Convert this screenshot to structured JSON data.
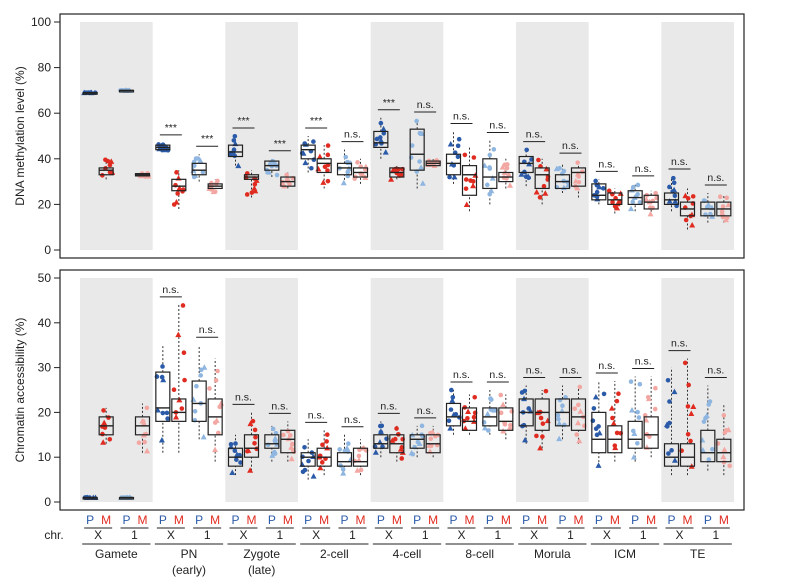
{
  "colors": {
    "paternal": "#2a5aa8",
    "maternal": "#e02b20",
    "paternal_light": "#8fb6e0",
    "maternal_light": "#f3a7a2",
    "shade": "#e9e9e9"
  },
  "stages": [
    "Gamete",
    "PN",
    "Zygote",
    "2-cell",
    "4-cell",
    "8-cell",
    "Morula",
    "ICM",
    "TE"
  ],
  "stage_sublabels": [
    "",
    "(early)",
    "(late)",
    "",
    "",
    "",
    "",
    "",
    ""
  ],
  "shaded_stages": [
    0,
    2,
    4,
    6,
    8
  ],
  "chr_label": "chr.",
  "chr_values": [
    "X",
    "1"
  ],
  "parent_labels": [
    "P",
    "M"
  ],
  "chart_data": [
    {
      "type": "box",
      "ylabel": "DNA methylation level (%)",
      "ylim": [
        0,
        100
      ],
      "yticks": [
        0,
        20,
        40,
        60,
        80,
        100
      ],
      "groups": [
        {
          "stage": "Gamete",
          "chr": "X",
          "P": [
            69,
            69,
            69,
            69,
            69
          ],
          "M": [
            31,
            33,
            35,
            36,
            41
          ]
        },
        {
          "stage": "Gamete",
          "chr": "1",
          "P": [
            70,
            70,
            70,
            70,
            70
          ],
          "M": [
            32,
            32.5,
            33,
            33.5,
            34
          ]
        },
        {
          "stage": "PN",
          "chr": "X",
          "P": [
            43,
            44,
            45,
            46,
            47
          ],
          "M": [
            18,
            26,
            28,
            31,
            35
          ],
          "sig": "***"
        },
        {
          "stage": "PN",
          "chr": "1",
          "P": [
            30,
            33,
            35,
            38,
            42
          ],
          "M": [
            25,
            27,
            28,
            29,
            31
          ],
          "sig": "***"
        },
        {
          "stage": "Zygote",
          "chr": "X",
          "P": [
            37,
            41,
            43,
            46,
            50
          ],
          "M": [
            23,
            31,
            32,
            33,
            35
          ],
          "sig": "***"
        },
        {
          "stage": "Zygote",
          "chr": "1",
          "P": [
            32,
            35,
            37,
            39,
            40
          ],
          "M": [
            27,
            28,
            30,
            32,
            34
          ],
          "sig": "***"
        },
        {
          "stage": "2-cell",
          "chr": "X",
          "P": [
            34,
            40,
            44,
            46,
            50
          ],
          "M": [
            27,
            34,
            38,
            40,
            46
          ],
          "sig": "***"
        },
        {
          "stage": "2-cell",
          "chr": "1",
          "P": [
            29,
            33,
            36,
            38,
            44
          ],
          "M": [
            29,
            32,
            34,
            36,
            40
          ],
          "sig": "n.s."
        },
        {
          "stage": "4-cell",
          "chr": "X",
          "P": [
            40,
            45,
            47,
            52,
            58
          ],
          "M": [
            31,
            32,
            34,
            36,
            37
          ],
          "sig": "***"
        },
        {
          "stage": "4-cell",
          "chr": "1",
          "P": [
            27,
            35,
            42,
            53,
            57
          ],
          "M": [
            36,
            37,
            38,
            39,
            40
          ],
          "sig": "n.s."
        },
        {
          "stage": "8-cell",
          "chr": "X",
          "P": [
            29,
            33,
            38,
            42,
            52
          ],
          "M": [
            17,
            24,
            33,
            37,
            45
          ],
          "sig": "n.s."
        },
        {
          "stage": "8-cell",
          "chr": "1",
          "P": [
            20,
            27,
            32,
            40,
            48
          ],
          "M": [
            27,
            30,
            32,
            34,
            40
          ],
          "sig": "n.s."
        },
        {
          "stage": "Morula",
          "chr": "X",
          "P": [
            28,
            34,
            38,
            41,
            44
          ],
          "M": [
            20,
            27,
            33,
            36,
            40
          ],
          "sig": "n.s."
        },
        {
          "stage": "Morula",
          "chr": "1",
          "P": [
            25,
            27,
            30,
            33,
            38
          ],
          "M": [
            23,
            28,
            34,
            36,
            39
          ],
          "sig": "n.s."
        },
        {
          "stage": "ICM",
          "chr": "X",
          "P": [
            20,
            22,
            24,
            29,
            31
          ],
          "M": [
            16,
            20,
            22,
            25,
            27
          ],
          "sig": "n.s."
        },
        {
          "stage": "ICM",
          "chr": "1",
          "P": [
            17,
            20,
            23,
            26,
            29
          ],
          "M": [
            15,
            18,
            21,
            24,
            26
          ],
          "sig": "n.s."
        },
        {
          "stage": "TE",
          "chr": "X",
          "P": [
            17,
            20,
            22,
            25,
            32
          ],
          "M": [
            9,
            15,
            18,
            21,
            27
          ],
          "sig": "n.s."
        },
        {
          "stage": "TE",
          "chr": "1",
          "P": [
            12,
            15,
            18,
            21,
            25
          ],
          "M": [
            12,
            15,
            18,
            21,
            24
          ],
          "sig": "n.s."
        }
      ]
    },
    {
      "type": "box",
      "ylabel": "Chromatin accessibility (%)",
      "ylim": [
        0,
        50
      ],
      "yticks": [
        0,
        10,
        20,
        30,
        40,
        50
      ],
      "groups": [
        {
          "stage": "Gamete",
          "chr": "X",
          "P": [
            1,
            1,
            1,
            1,
            1
          ],
          "M": [
            13,
            15,
            17,
            19,
            21
          ]
        },
        {
          "stage": "Gamete",
          "chr": "1",
          "P": [
            1,
            1,
            1,
            1,
            1
          ],
          "M": [
            11,
            15,
            17,
            19,
            22
          ]
        },
        {
          "stage": "PN",
          "chr": "X",
          "P": [
            11,
            18,
            21,
            29,
            35
          ],
          "M": [
            11,
            18,
            20,
            23,
            44
          ],
          "sig": "n.s."
        },
        {
          "stage": "PN",
          "chr": "1",
          "P": [
            14,
            18,
            22,
            27,
            35
          ],
          "M": [
            9,
            15,
            19,
            23,
            32
          ],
          "sig": "n.s."
        },
        {
          "stage": "Zygote",
          "chr": "X",
          "P": [
            6,
            8,
            10,
            12,
            15
          ],
          "M": [
            7,
            10,
            12,
            15,
            20
          ],
          "sig": "n.s."
        },
        {
          "stage": "Zygote",
          "chr": "1",
          "P": [
            9,
            12,
            13,
            15,
            17
          ],
          "M": [
            9,
            11,
            14,
            16,
            18
          ],
          "sig": "n.s."
        },
        {
          "stage": "2-cell",
          "chr": "X",
          "P": [
            5,
            8,
            10,
            11,
            14
          ],
          "M": [
            6,
            8,
            10,
            12,
            16
          ],
          "sig": "n.s."
        },
        {
          "stage": "2-cell",
          "chr": "1",
          "P": [
            6,
            8,
            9,
            11,
            15
          ],
          "M": [
            6,
            8,
            9,
            12,
            14
          ],
          "sig": "n.s."
        },
        {
          "stage": "4-cell",
          "chr": "X",
          "P": [
            10,
            12,
            13,
            15,
            18
          ],
          "M": [
            9,
            11,
            13,
            15,
            17
          ],
          "sig": "n.s."
        },
        {
          "stage": "4-cell",
          "chr": "1",
          "P": [
            10,
            12,
            14,
            15,
            17
          ],
          "M": [
            10,
            11,
            13,
            15,
            17
          ],
          "sig": "n.s."
        },
        {
          "stage": "8-cell",
          "chr": "X",
          "P": [
            15,
            17,
            19,
            22,
            25
          ],
          "M": [
            15,
            16,
            18,
            21,
            24
          ],
          "sig": "n.s."
        },
        {
          "stage": "8-cell",
          "chr": "1",
          "P": [
            15,
            17,
            19,
            21,
            25
          ],
          "M": [
            14,
            16,
            18,
            21,
            24
          ],
          "sig": "n.s."
        },
        {
          "stage": "Morula",
          "chr": "X",
          "P": [
            13,
            17,
            20,
            23,
            26
          ],
          "M": [
            12,
            16,
            20,
            23,
            25
          ],
          "sig": "n.s."
        },
        {
          "stage": "Morula",
          "chr": "1",
          "P": [
            14,
            17,
            20,
            23,
            26
          ],
          "M": [
            13,
            16,
            19,
            23,
            26
          ],
          "sig": "n.s."
        },
        {
          "stage": "ICM",
          "chr": "X",
          "P": [
            8,
            11,
            14,
            20,
            27
          ],
          "M": [
            9,
            11,
            14,
            17,
            27
          ],
          "sig": "n.s."
        },
        {
          "stage": "ICM",
          "chr": "1",
          "P": [
            9,
            12,
            14,
            18,
            28
          ],
          "M": [
            10,
            12,
            15,
            19,
            28
          ],
          "sig": "n.s."
        },
        {
          "stage": "TE",
          "chr": "X",
          "P": [
            6,
            8,
            10,
            13,
            30
          ],
          "M": [
            6,
            8,
            10,
            13,
            32
          ],
          "sig": "n.s."
        },
        {
          "stage": "TE",
          "chr": "1",
          "P": [
            7,
            9,
            11,
            16,
            26
          ],
          "M": [
            6,
            9,
            11,
            14,
            22
          ],
          "sig": "n.s."
        }
      ]
    }
  ]
}
